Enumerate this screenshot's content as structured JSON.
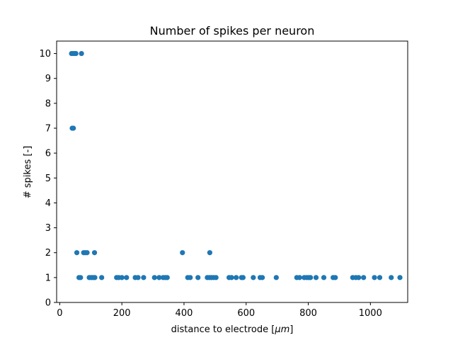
{
  "chart_data": {
    "type": "scatter",
    "title": "Number of spikes per neuron",
    "xlabel": "distance to electrode [",
    "xlabel_unit": "μm",
    "xlabel_close": "]",
    "ylabel": "# spikes [-]",
    "xlim": [
      -10,
      1120
    ],
    "ylim": [
      0,
      10.5
    ],
    "xticks": [
      0,
      200,
      400,
      600,
      800,
      1000
    ],
    "yticks": [
      0,
      1,
      2,
      3,
      4,
      5,
      6,
      7,
      8,
      9,
      10
    ],
    "grid": false,
    "marker_color": "#1f77b4",
    "points": [
      {
        "x": 38,
        "y": 10
      },
      {
        "x": 43,
        "y": 10
      },
      {
        "x": 48,
        "y": 10
      },
      {
        "x": 52,
        "y": 10
      },
      {
        "x": 70,
        "y": 10
      },
      {
        "x": 40,
        "y": 7
      },
      {
        "x": 44,
        "y": 7
      },
      {
        "x": 55,
        "y": 2
      },
      {
        "x": 77,
        "y": 2
      },
      {
        "x": 82,
        "y": 2
      },
      {
        "x": 88,
        "y": 2
      },
      {
        "x": 112,
        "y": 2
      },
      {
        "x": 395,
        "y": 2
      },
      {
        "x": 483,
        "y": 2
      },
      {
        "x": 62,
        "y": 1
      },
      {
        "x": 67,
        "y": 1
      },
      {
        "x": 95,
        "y": 1
      },
      {
        "x": 102,
        "y": 1
      },
      {
        "x": 108,
        "y": 1
      },
      {
        "x": 113,
        "y": 1
      },
      {
        "x": 135,
        "y": 1
      },
      {
        "x": 183,
        "y": 1
      },
      {
        "x": 190,
        "y": 1
      },
      {
        "x": 200,
        "y": 1
      },
      {
        "x": 215,
        "y": 1
      },
      {
        "x": 243,
        "y": 1
      },
      {
        "x": 252,
        "y": 1
      },
      {
        "x": 270,
        "y": 1
      },
      {
        "x": 305,
        "y": 1
      },
      {
        "x": 320,
        "y": 1
      },
      {
        "x": 333,
        "y": 1
      },
      {
        "x": 340,
        "y": 1
      },
      {
        "x": 346,
        "y": 1
      },
      {
        "x": 412,
        "y": 1
      },
      {
        "x": 420,
        "y": 1
      },
      {
        "x": 445,
        "y": 1
      },
      {
        "x": 475,
        "y": 1
      },
      {
        "x": 482,
        "y": 1
      },
      {
        "x": 488,
        "y": 1
      },
      {
        "x": 495,
        "y": 1
      },
      {
        "x": 503,
        "y": 1
      },
      {
        "x": 545,
        "y": 1
      },
      {
        "x": 553,
        "y": 1
      },
      {
        "x": 568,
        "y": 1
      },
      {
        "x": 585,
        "y": 1
      },
      {
        "x": 590,
        "y": 1
      },
      {
        "x": 623,
        "y": 1
      },
      {
        "x": 645,
        "y": 1
      },
      {
        "x": 652,
        "y": 1
      },
      {
        "x": 697,
        "y": 1
      },
      {
        "x": 763,
        "y": 1
      },
      {
        "x": 772,
        "y": 1
      },
      {
        "x": 787,
        "y": 1
      },
      {
        "x": 795,
        "y": 1
      },
      {
        "x": 802,
        "y": 1
      },
      {
        "x": 807,
        "y": 1
      },
      {
        "x": 825,
        "y": 1
      },
      {
        "x": 850,
        "y": 1
      },
      {
        "x": 880,
        "y": 1
      },
      {
        "x": 887,
        "y": 1
      },
      {
        "x": 943,
        "y": 1
      },
      {
        "x": 953,
        "y": 1
      },
      {
        "x": 962,
        "y": 1
      },
      {
        "x": 978,
        "y": 1
      },
      {
        "x": 1013,
        "y": 1
      },
      {
        "x": 1030,
        "y": 1
      },
      {
        "x": 1067,
        "y": 1
      },
      {
        "x": 1095,
        "y": 1
      }
    ]
  }
}
